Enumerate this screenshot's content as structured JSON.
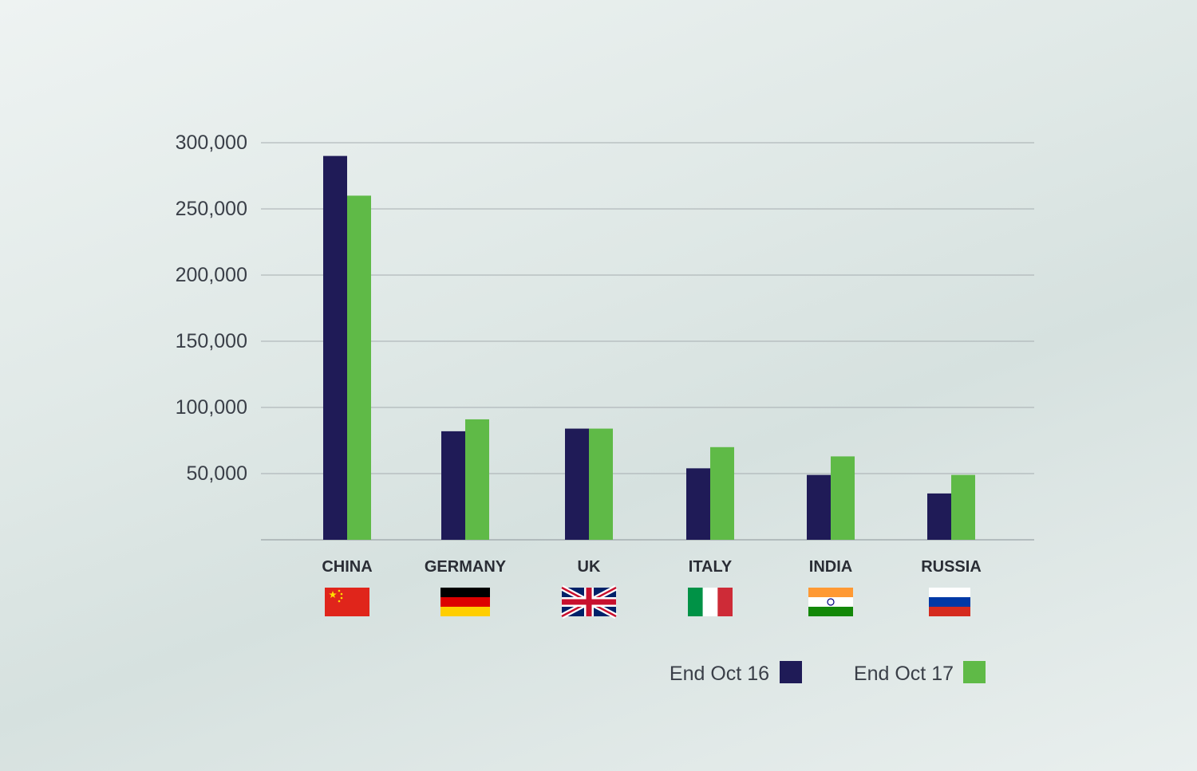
{
  "chart_data": {
    "type": "bar",
    "categories": [
      "CHINA",
      "GERMANY",
      "UK",
      "ITALY",
      "INDIA",
      "RUSSIA"
    ],
    "series": [
      {
        "name": "End Oct 16",
        "color": "#1f1b57",
        "values": [
          290000,
          82000,
          84000,
          54000,
          49000,
          35000
        ]
      },
      {
        "name": "End Oct 17",
        "color": "#5fba47",
        "values": [
          260000,
          91000,
          84000,
          70000,
          63000,
          49000
        ]
      }
    ],
    "ylim": [
      0,
      300000
    ],
    "yticks": [
      50000,
      100000,
      150000,
      200000,
      250000,
      300000
    ],
    "ytick_labels": [
      "50,000",
      "100,000",
      "150,000",
      "200,000",
      "250,000",
      "300,000"
    ],
    "grid": true,
    "legend_placement": "bottom-right",
    "category_icons": [
      "flag-china",
      "flag-germany",
      "flag-uk",
      "flag-italy",
      "flag-india",
      "flag-russia"
    ]
  }
}
